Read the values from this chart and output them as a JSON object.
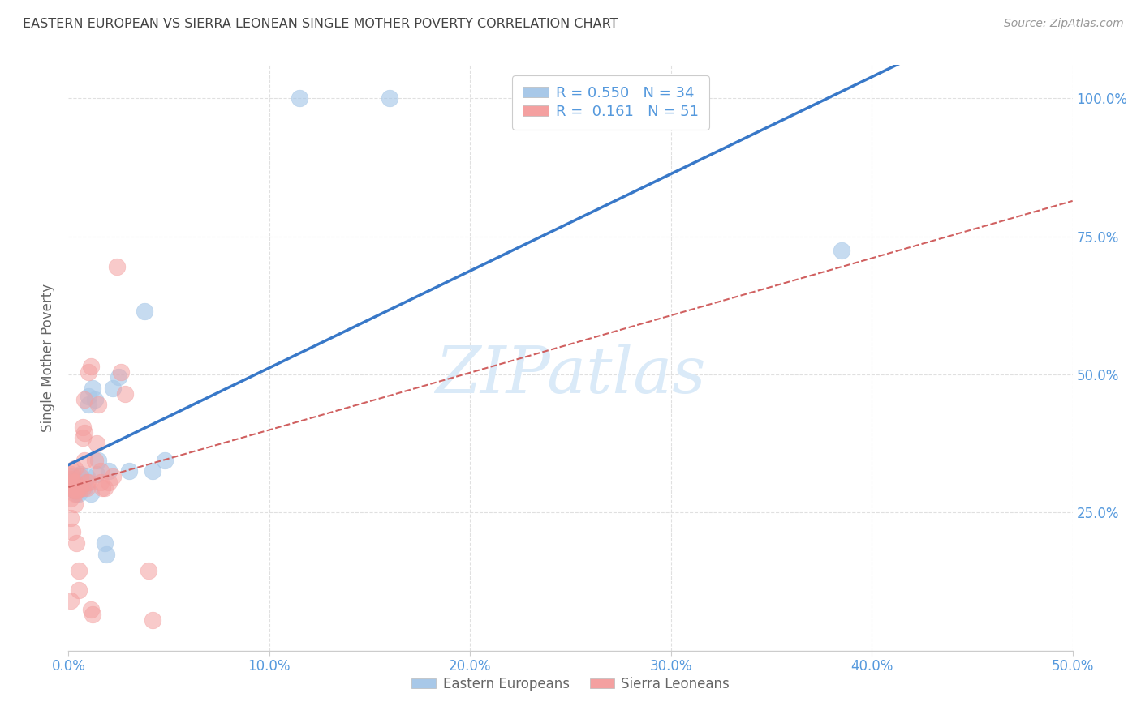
{
  "title": "EASTERN EUROPEAN VS SIERRA LEONEAN SINGLE MOTHER POVERTY CORRELATION CHART",
  "source": "Source: ZipAtlas.com",
  "ylabel": "Single Mother Poverty",
  "xlim": [
    0.0,
    0.5
  ],
  "ylim": [
    0.0,
    1.06
  ],
  "xtick_labels": [
    "0.0%",
    "10.0%",
    "20.0%",
    "30.0%",
    "40.0%",
    "50.0%"
  ],
  "xtick_values": [
    0.0,
    0.1,
    0.2,
    0.3,
    0.4,
    0.5
  ],
  "ytick_labels": [
    "25.0%",
    "50.0%",
    "75.0%",
    "100.0%"
  ],
  "ytick_values": [
    0.25,
    0.5,
    0.75,
    1.0
  ],
  "legend_label1": "Eastern Europeans",
  "legend_label2": "Sierra Leoneans",
  "R1": 0.55,
  "N1": 34,
  "R2": 0.161,
  "N2": 51,
  "blue_color": "#a8c8e8",
  "pink_color": "#f4a0a0",
  "blue_line_color": "#3878c8",
  "pink_line_color": "#d06060",
  "watermark_text": "ZIPatlas",
  "watermark_color": "#daeaf8",
  "blue_x": [
    0.001,
    0.002,
    0.002,
    0.003,
    0.003,
    0.004,
    0.004,
    0.005,
    0.005,
    0.005,
    0.006,
    0.006,
    0.007,
    0.008,
    0.009,
    0.01,
    0.01,
    0.011,
    0.012,
    0.013,
    0.014,
    0.015,
    0.018,
    0.019,
    0.02,
    0.022,
    0.025,
    0.03,
    0.038,
    0.042,
    0.048,
    0.115,
    0.16,
    0.385
  ],
  "blue_y": [
    0.315,
    0.295,
    0.31,
    0.29,
    0.31,
    0.285,
    0.3,
    0.285,
    0.3,
    0.315,
    0.305,
    0.32,
    0.305,
    0.295,
    0.315,
    0.445,
    0.46,
    0.285,
    0.475,
    0.455,
    0.32,
    0.345,
    0.195,
    0.175,
    0.325,
    0.475,
    0.495,
    0.325,
    0.615,
    0.325,
    0.345,
    1.0,
    1.0,
    0.725
  ],
  "pink_x": [
    0.001,
    0.001,
    0.001,
    0.001,
    0.001,
    0.001,
    0.001,
    0.002,
    0.002,
    0.002,
    0.002,
    0.002,
    0.003,
    0.003,
    0.003,
    0.003,
    0.003,
    0.004,
    0.004,
    0.005,
    0.005,
    0.005,
    0.006,
    0.006,
    0.007,
    0.007,
    0.007,
    0.008,
    0.008,
    0.008,
    0.009,
    0.009,
    0.01,
    0.01,
    0.011,
    0.011,
    0.012,
    0.013,
    0.014,
    0.015,
    0.016,
    0.016,
    0.017,
    0.018,
    0.02,
    0.022,
    0.024,
    0.026,
    0.028,
    0.04,
    0.042
  ],
  "pink_y": [
    0.295,
    0.31,
    0.32,
    0.3,
    0.275,
    0.24,
    0.09,
    0.295,
    0.305,
    0.325,
    0.305,
    0.215,
    0.29,
    0.33,
    0.305,
    0.285,
    0.265,
    0.29,
    0.195,
    0.295,
    0.145,
    0.11,
    0.315,
    0.295,
    0.405,
    0.385,
    0.295,
    0.395,
    0.455,
    0.345,
    0.295,
    0.305,
    0.305,
    0.505,
    0.515,
    0.075,
    0.065,
    0.345,
    0.375,
    0.445,
    0.325,
    0.305,
    0.295,
    0.295,
    0.305,
    0.315,
    0.695,
    0.505,
    0.465,
    0.145,
    0.055
  ],
  "background_color": "#ffffff",
  "grid_color": "#e0e0e0",
  "title_color": "#444444",
  "tick_color": "#5599dd",
  "ylabel_color": "#666666"
}
